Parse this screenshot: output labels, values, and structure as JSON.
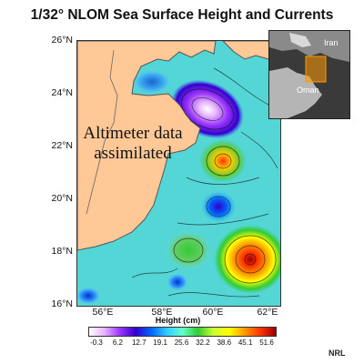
{
  "title": "1/32° NLOM Sea Surface Height and Currents",
  "annotation": {
    "line1": "Altimeter data",
    "line2": "assimilated"
  },
  "axes": {
    "lat_ticks": [
      "26°N",
      "24°N",
      "22°N",
      "20°N",
      "18°N",
      "16°N"
    ],
    "lon_ticks": [
      "56°E",
      "58°E",
      "60°E",
      "62°E"
    ]
  },
  "inset": {
    "label_iran": "Iran",
    "label_oman": "Oman"
  },
  "colorbar": {
    "title": "Height (cm)",
    "ticks": [
      "-0.3",
      "6.2",
      "12.7",
      "19.1",
      "25.6",
      "32.2",
      "38.6",
      "45.1",
      "51.6"
    ],
    "colors": [
      "#ffffff",
      "#e6b3ff",
      "#9933ff",
      "#3300cc",
      "#0066ff",
      "#33ccff",
      "#66ffcc",
      "#33cc33",
      "#ccff33",
      "#ffff00",
      "#ff9900",
      "#ff3300",
      "#990000"
    ]
  },
  "colors": {
    "land": "#ffc896",
    "land_outline": "#555555"
  },
  "credit": "NRL"
}
